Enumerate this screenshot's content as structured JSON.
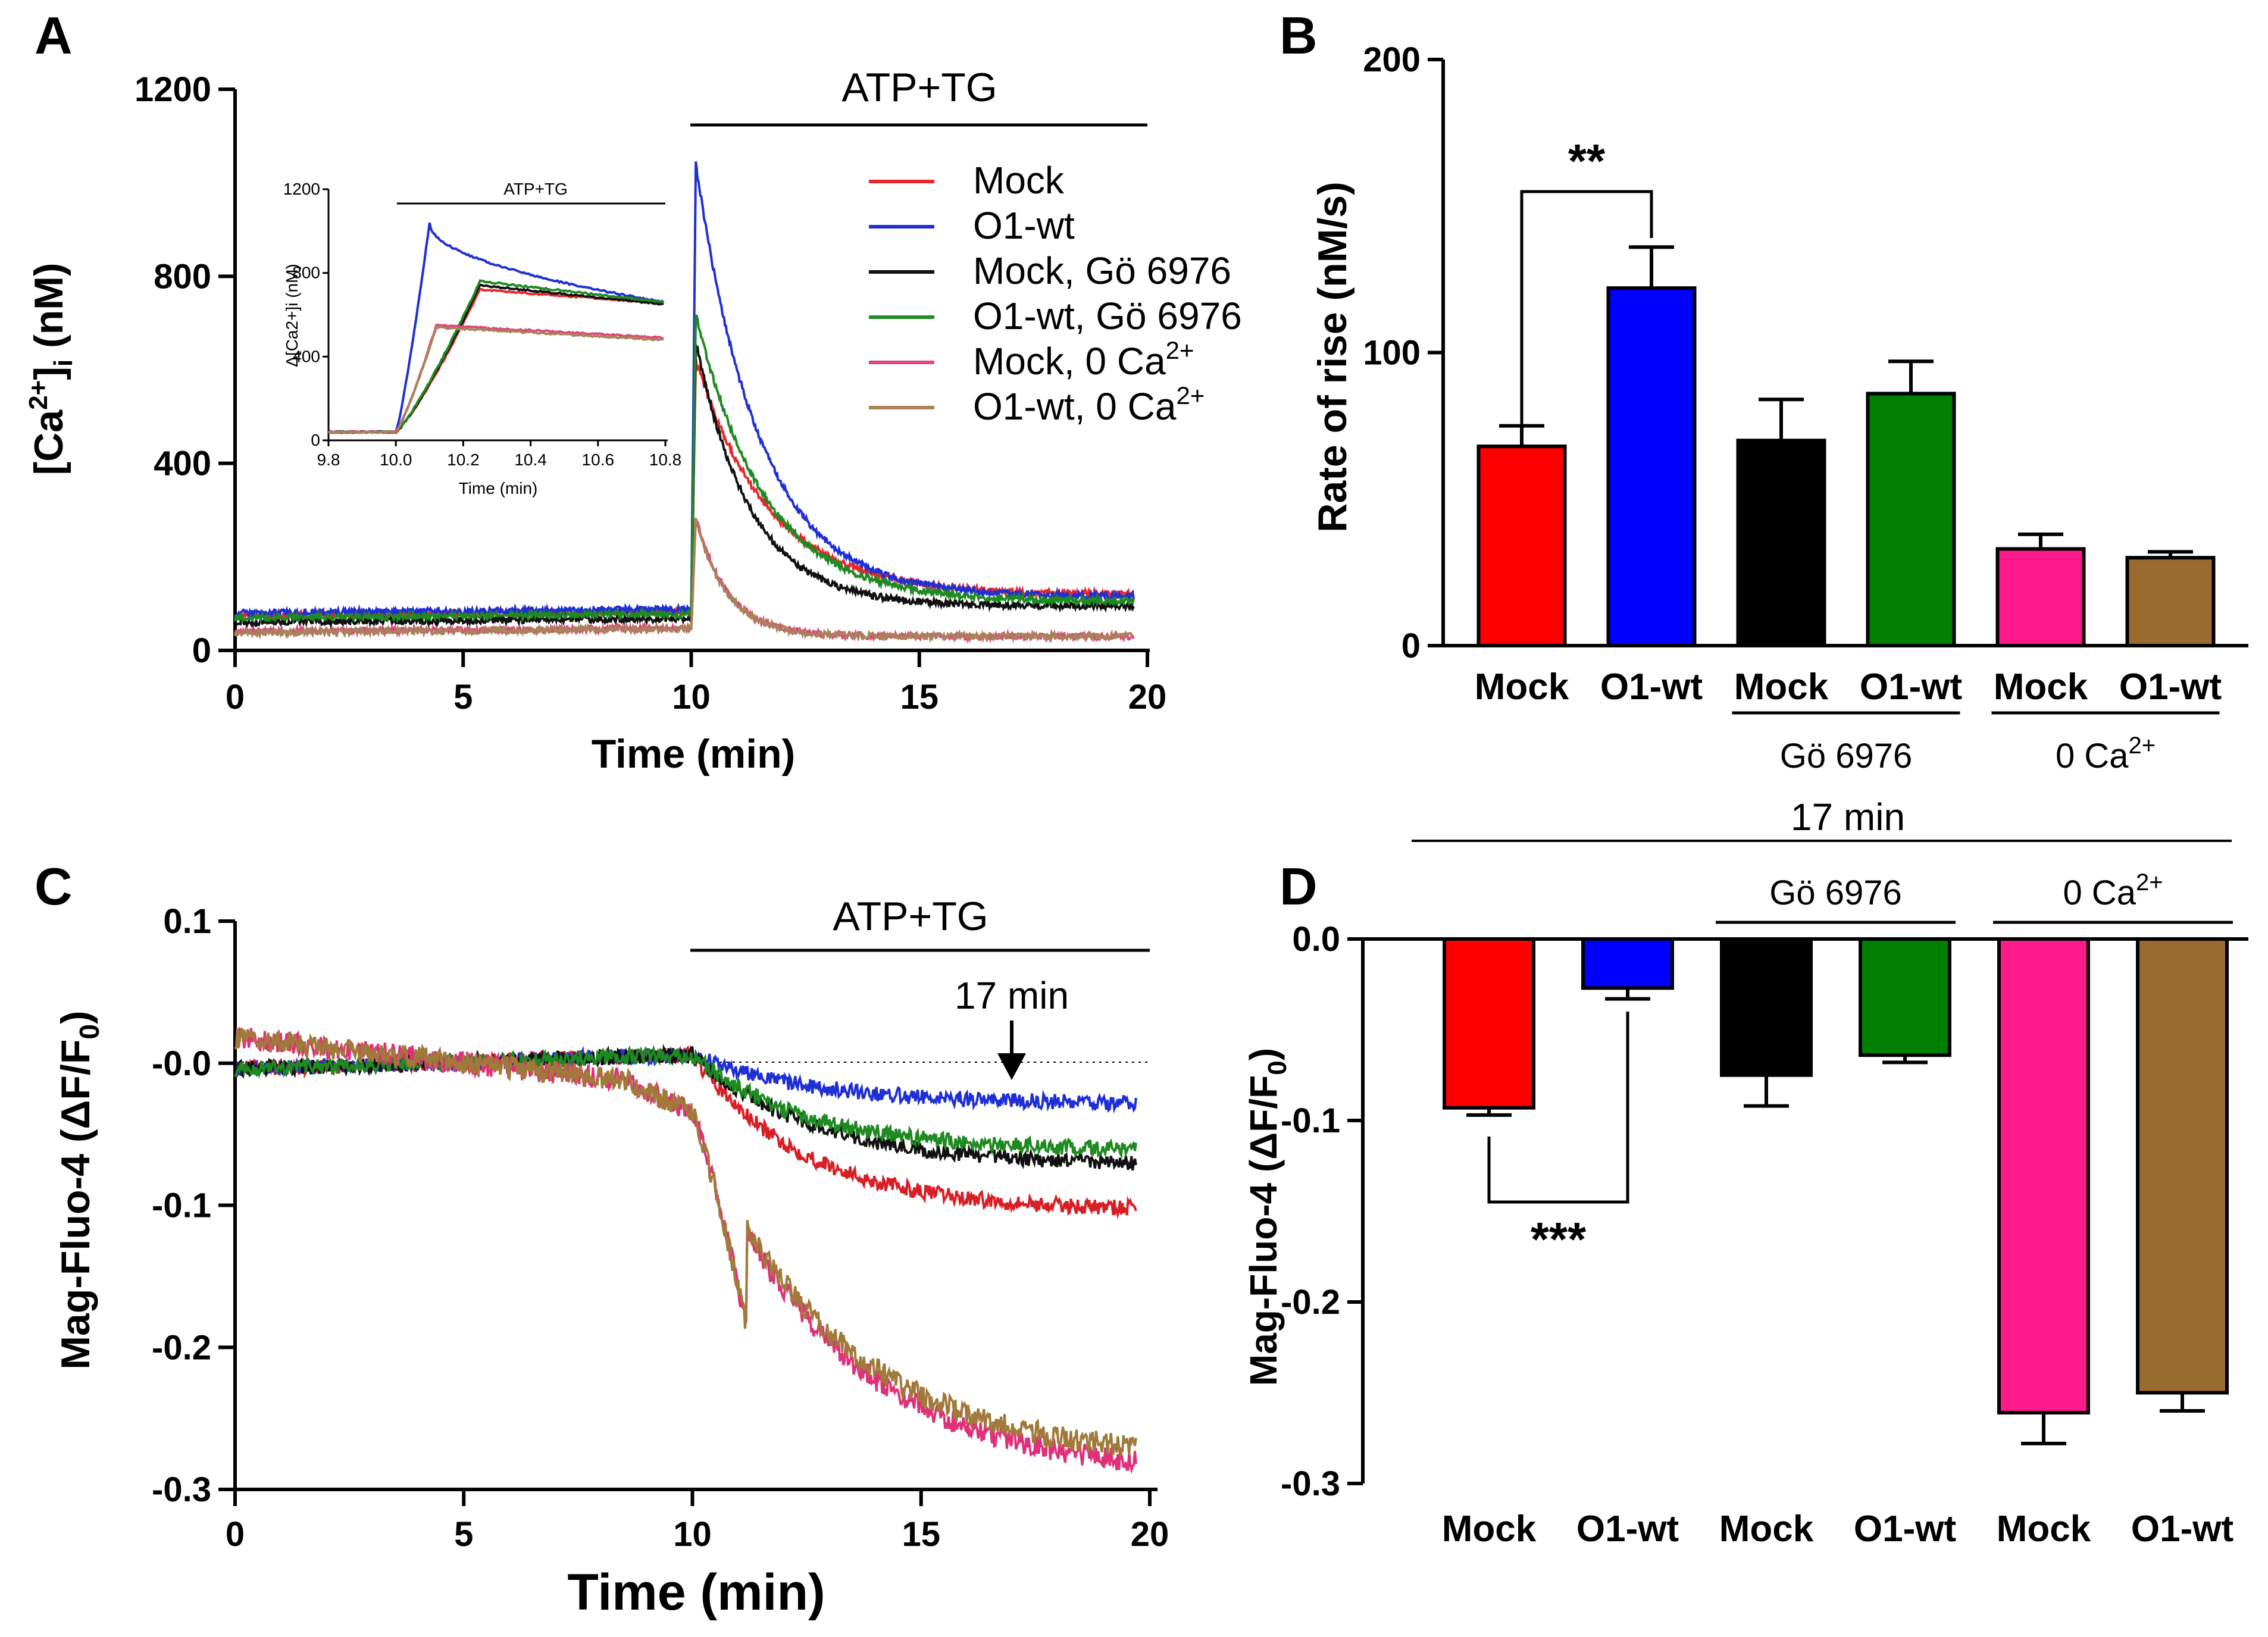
{
  "figure": {
    "panel_labels": {
      "A": "A",
      "B": "B",
      "C": "C",
      "D": "D"
    }
  },
  "chart_data": [
    {
      "id": "A",
      "type": "line",
      "ylabel": "[Ca2+]i (nM)",
      "ylabel_parts": {
        "pre": "[Ca",
        "sup": "2+",
        "mid": "]",
        "sub": "i",
        "post": " (nM)"
      },
      "xlabel": "Time (min)",
      "xlim": [
        0,
        20
      ],
      "ylim": [
        0,
        1200
      ],
      "xticks": [
        "0",
        "5",
        "10",
        "15",
        "20"
      ],
      "yticks": [
        "0",
        "400",
        "800",
        "1200"
      ],
      "bar_label": "ATP+TG",
      "bar_range": [
        10,
        20
      ],
      "legend": [
        {
          "label": "Mock",
          "color": "#e8272d"
        },
        {
          "label": "O1-wt",
          "color": "#1f2fd6"
        },
        {
          "label": "Mock, Gö 6976",
          "color": "#111111"
        },
        {
          "label": "O1-wt, Gö 6976",
          "color": "#1f8a22"
        },
        {
          "label": "Mock, 0 Ca",
          "sup": "2+",
          "color": "#e0457f"
        },
        {
          "label": "O1-wt, 0 Ca",
          "sup": "2+",
          "color": "#a8825a"
        }
      ],
      "series": [
        {
          "name": "Mock",
          "color": "#e8272d",
          "baseline": 75,
          "peak": 620,
          "plateau": 120,
          "tau": 1.6
        },
        {
          "name": "O1-wt",
          "color": "#1f2fd6",
          "baseline": 80,
          "peak": 1040,
          "plateau": 115,
          "tau": 1.4
        },
        {
          "name": "Mock, Gö 6976",
          "color": "#111111",
          "baseline": 60,
          "peak": 660,
          "plateau": 95,
          "tau": 1.2
        },
        {
          "name": "O1-wt, Gö 6976",
          "color": "#1f8a22",
          "baseline": 70,
          "peak": 720,
          "plateau": 105,
          "tau": 1.5
        },
        {
          "name": "Mock, 0 Ca2+",
          "color": "#e0457f",
          "baseline": 40,
          "peak": 285,
          "plateau": 30,
          "tau": 0.7
        },
        {
          "name": "O1-wt, 0 Ca2+",
          "color": "#a8825a",
          "baseline": 38,
          "peak": 280,
          "plateau": 30,
          "tau": 0.7
        }
      ],
      "inset": {
        "bar_label": "ATP+TG",
        "xlabel": "Time (min)",
        "ylabel": "Δ[Ca2+]i (nM)",
        "xlim": [
          9.8,
          10.8
        ],
        "ylim": [
          0,
          1200
        ],
        "xticks": [
          "9.8",
          "10.0",
          "10.2",
          "10.4",
          "10.6",
          "10.8"
        ],
        "yticks": [
          "0",
          "400",
          "800",
          "1200"
        ],
        "series": [
          {
            "name": "Mock",
            "color": "#e8272d",
            "peak_t": 10.25,
            "peak": 720,
            "end": 655
          },
          {
            "name": "O1-wt",
            "color": "#1f2fd6",
            "peak_t": 10.1,
            "peak": 1040,
            "end": 660
          },
          {
            "name": "Mock, Gö 6976",
            "color": "#111111",
            "peak_t": 10.25,
            "peak": 740,
            "end": 650
          },
          {
            "name": "O1-wt, Gö 6976",
            "color": "#1f8a22",
            "peak_t": 10.25,
            "peak": 760,
            "end": 660
          },
          {
            "name": "Mock, 0 Ca2+",
            "color": "#e0457f",
            "peak_t": 10.12,
            "peak": 550,
            "end": 490
          },
          {
            "name": "O1-wt, 0 Ca2+",
            "color": "#a8825a",
            "peak_t": 10.12,
            "peak": 540,
            "end": 480
          }
        ]
      }
    },
    {
      "id": "B",
      "type": "bar",
      "ylabel": "Rate of rise (nM/s)",
      "ylim": [
        0,
        200
      ],
      "yticks": [
        "0",
        "100",
        "200"
      ],
      "categories": [
        "Mock",
        "O1-wt",
        "Mock",
        "O1-wt",
        "Mock",
        "O1-wt"
      ],
      "values": [
        68,
        122,
        70,
        86,
        33,
        30
      ],
      "errors": [
        7,
        14,
        14,
        11,
        5,
        2
      ],
      "colors": [
        "#ff0000",
        "#0000ff",
        "#000000",
        "#008000",
        "#ff1a8c",
        "#9a6b2f"
      ],
      "groups": [
        {
          "label": "Gö 6976",
          "from": 2,
          "to": 3
        },
        {
          "label": "0 Ca",
          "sup": "2+",
          "from": 4,
          "to": 5
        }
      ],
      "significance": {
        "label": "**",
        "from": 0,
        "to": 1
      }
    },
    {
      "id": "C",
      "type": "line",
      "ylabel": "Mag-Fluo-4 (ΔF/F0)",
      "ylabel_parts": {
        "pre": "Mag-Fluo-4 (ΔF/F",
        "sub": "0",
        "post": ")"
      },
      "xlabel": "Time (min)",
      "xlim": [
        0,
        20
      ],
      "ylim": [
        -0.3,
        0.1
      ],
      "xticks": [
        "0",
        "5",
        "10",
        "15",
        "20"
      ],
      "yticks": [
        "0.1",
        "-0.0",
        "-0.1",
        "-0.2",
        "-0.3"
      ],
      "bar_label": "ATP+TG",
      "bar_range": [
        10,
        20
      ],
      "arrow_label": "17 min",
      "arrow_x": 17,
      "series": [
        {
          "name": "Mock",
          "color": "#d81f26",
          "end": -0.102,
          "tau": 2.4
        },
        {
          "name": "O1-wt",
          "color": "#1f2fd6",
          "end": -0.028,
          "tau": 2.6
        },
        {
          "name": "Mock, Gö 6976",
          "color": "#111111",
          "end": -0.07,
          "tau": 2.6
        },
        {
          "name": "O1-wt, Gö 6976",
          "color": "#1f8a22",
          "end": -0.06,
          "tau": 2.4
        },
        {
          "name": "Mock, 0 Ca2+",
          "color": "#e0307a",
          "end": -0.28,
          "tau": 3.0
        },
        {
          "name": "O1-wt, 0 Ca2+",
          "color": "#a07a3a",
          "end": -0.27,
          "tau": 3.0
        }
      ]
    },
    {
      "id": "D",
      "type": "bar",
      "ylabel": "Mag-Fluo-4 (ΔF/F0)",
      "ylabel_parts": {
        "pre": "Mag-Fluo-4 (ΔF/F",
        "sub": "0",
        "post": ")"
      },
      "ylim": [
        -0.3,
        0.0
      ],
      "yticks": [
        "0.0",
        "-0.1",
        "-0.2",
        "-0.3"
      ],
      "categories": [
        "Mock",
        "O1-wt",
        "Mock",
        "O1-wt",
        "Mock",
        "O1-wt"
      ],
      "values": [
        -0.093,
        -0.027,
        -0.075,
        -0.064,
        -0.261,
        -0.25
      ],
      "errors": [
        0.004,
        0.006,
        0.017,
        0.004,
        0.017,
        0.01
      ],
      "colors": [
        "#ff0000",
        "#0000ff",
        "#000000",
        "#008000",
        "#ff1a8c",
        "#9a6b2f"
      ],
      "top_label": "17 min",
      "groups": [
        {
          "label": "Gö 6976",
          "from": 2,
          "to": 3
        },
        {
          "label": "0 Ca",
          "sup": "2+",
          "from": 4,
          "to": 5
        }
      ],
      "significance": {
        "label": "***",
        "from": 0,
        "to": 1
      }
    }
  ]
}
